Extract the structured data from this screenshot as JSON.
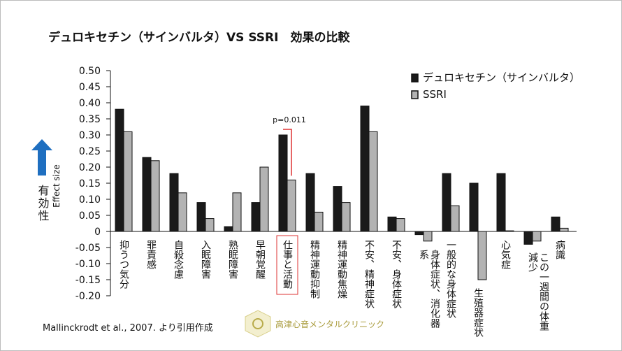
{
  "chart_data": {
    "type": "bar",
    "title": "デュロキセチン（サインバルタ）VS SSRI　効果の比較",
    "y_label": "有効性",
    "y_sublabel": "Effect size",
    "categories": [
      "抑うつ気分",
      "罪責感",
      "自殺念慮",
      "入眠障害",
      "熟眠障害",
      "早朝覚醒",
      "仕事と活動",
      "精神運動抑制",
      "精神運動焦燥",
      "不安、精神症状",
      "不安、身体症状",
      "身体症状、消化器系",
      "一般的な身体症状",
      "生殖器症状",
      "心気症",
      "この一週間の体重減少",
      "病識"
    ],
    "series": [
      {
        "name": "デュロキセチン（サインバルタ）",
        "color": "#1a1a1a",
        "values": [
          0.38,
          0.23,
          0.18,
          0.09,
          0.015,
          0.09,
          0.3,
          0.18,
          0.14,
          0.39,
          0.045,
          -0.01,
          0.18,
          0.15,
          0.18,
          -0.04,
          0.045
        ]
      },
      {
        "name": "SSRI",
        "color": "#b3b3b3",
        "values": [
          0.31,
          0.22,
          0.12,
          0.04,
          0.12,
          0.2,
          0.16,
          0.06,
          0.09,
          0.31,
          0.04,
          -0.03,
          0.08,
          -0.15,
          0.002,
          -0.03,
          0.01
        ]
      }
    ],
    "ylim": [
      -0.2,
      0.5
    ],
    "yticks": [
      {
        "value": 0.5,
        "label": "0.50"
      },
      0.45,
      {
        "value": 0.4,
        "label": "0.40"
      },
      0.35,
      {
        "value": 0.3,
        "label": "0.30"
      },
      0.25,
      {
        "value": 0.2,
        "label": "0.20"
      },
      0.15,
      {
        "value": 0.1,
        "label": "0.10"
      },
      0.05,
      0,
      -0.05,
      {
        "value": -0.1,
        "label": "-0.10"
      },
      -0.15,
      {
        "value": -0.2,
        "label": "-0.20"
      }
    ],
    "annotation": "p=0.011",
    "legend": "top-right",
    "source": "Mallinckrodt et al., 2007. より引用作成",
    "logo": "高津心音メンタルクリニック"
  }
}
